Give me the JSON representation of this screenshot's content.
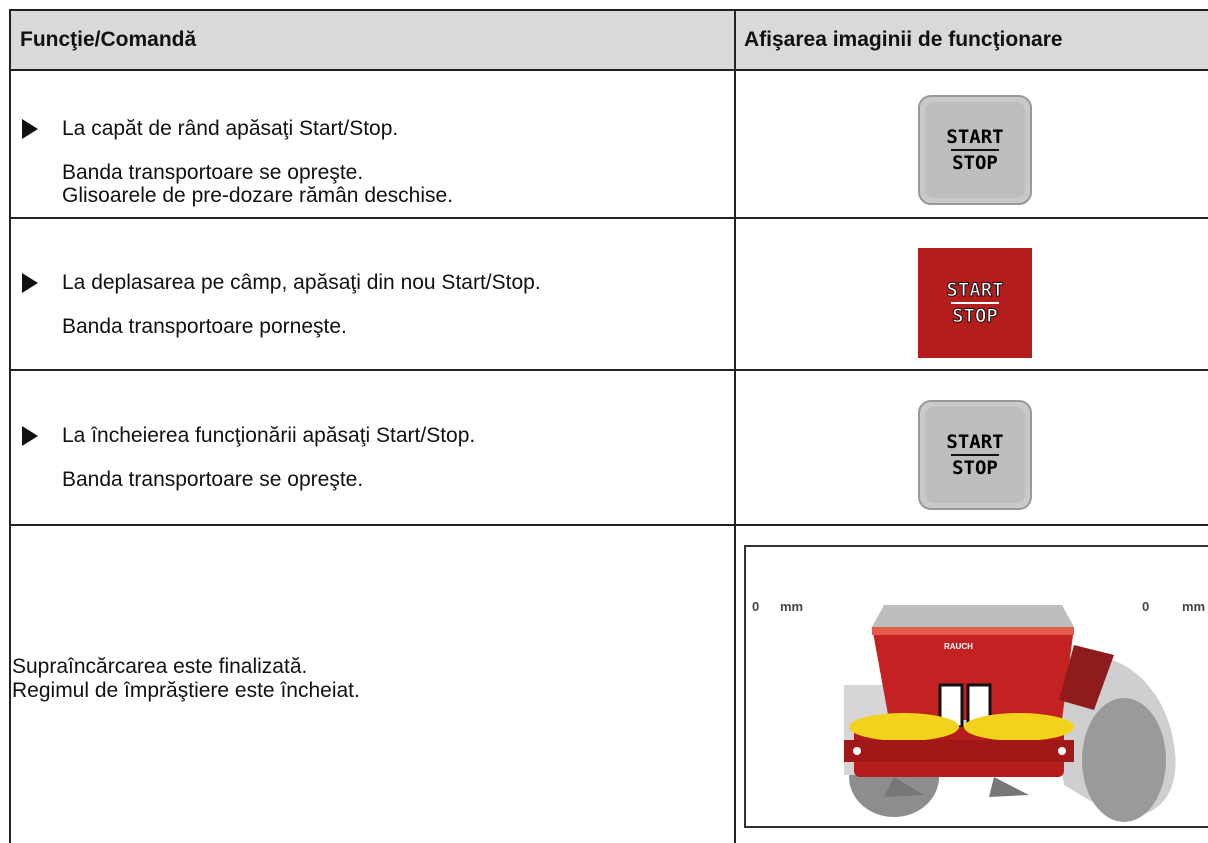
{
  "header": {
    "col1": "Funcţie/Comandă",
    "col2": "Afişarea imaginii de funcţionare"
  },
  "rows": [
    {
      "step": "La capăt de rând apăsaţi Start/Stop.",
      "results": [
        "Banda transportoare se opreşte.",
        "Glisoarele de pre-dozare rămân deschise."
      ],
      "button": {
        "top": "START",
        "bottom": "STOP"
      }
    },
    {
      "step": "La deplasarea pe câmp, apăsaţi din nou Start/Stop.",
      "results": [
        "Banda transportoare porneşte."
      ],
      "button": {
        "top": "START",
        "bottom": "STOP"
      }
    },
    {
      "step": "La încheierea funcţionării apăsaţi Start/Stop.",
      "results": [
        "Banda transportoare se opreşte."
      ],
      "button": {
        "top": "START",
        "bottom": "STOP"
      }
    }
  ],
  "final": {
    "lines": [
      "Supraîncărcarea este finalizată.",
      "Regimul de împrăştiere este încheiat."
    ],
    "display": {
      "left_value": "0",
      "left_unit": "mm",
      "right_value": "0",
      "right_unit": "mm",
      "brand": "RAUCH"
    }
  }
}
